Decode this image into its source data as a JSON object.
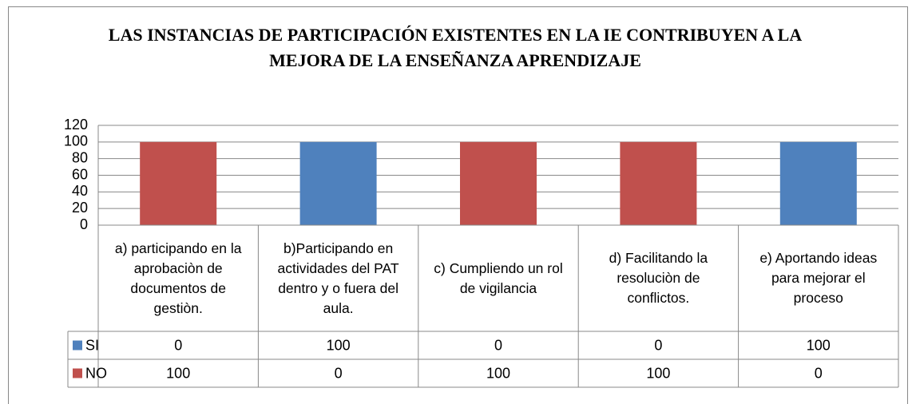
{
  "chart_data": {
    "type": "bar",
    "stacked": true,
    "title": "LAS INSTANCIAS DE PARTICIPACIÓN EXISTENTES EN LA IE CONTRIBUYEN A LA MEJORA DE LA ENSEÑANZA APRENDIZAJE",
    "categories": [
      "a) participando en la aprobaciòn de documentos de gestiòn.",
      "b)Participando en actividades del PAT dentro y o fuera del aula.",
      "c) Cumpliendo un rol de vigilancia",
      "d) Facilitando la resoluciòn de conflictos.",
      "e) Aportando ideas para mejorar el proceso"
    ],
    "series": [
      {
        "name": "SI",
        "color": "#4f81bd",
        "values": [
          0,
          100,
          0,
          0,
          100
        ]
      },
      {
        "name": "NO",
        "color": "#c0504d",
        "values": [
          100,
          0,
          100,
          100,
          0
        ]
      }
    ],
    "ylim": [
      0,
      120
    ],
    "yticks": [
      0,
      20,
      40,
      60,
      80,
      100,
      120
    ],
    "grid": true,
    "data_table": true
  }
}
